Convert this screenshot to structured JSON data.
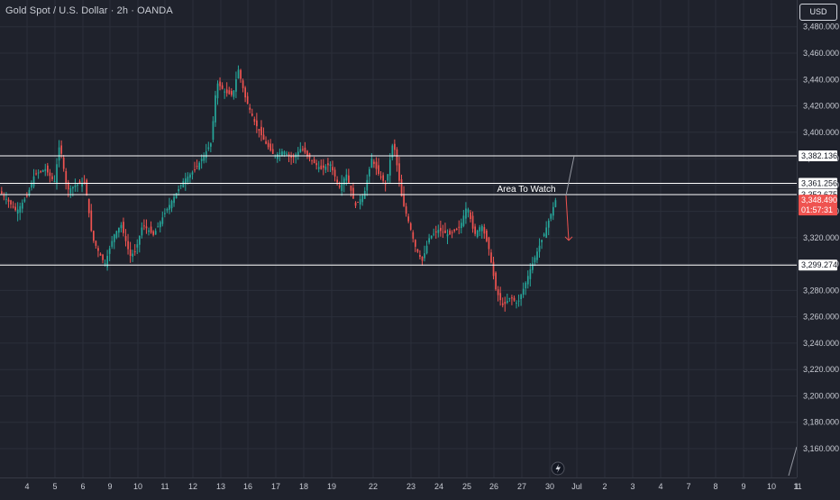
{
  "header": {
    "title": "Gold Spot / U.S. Dollar · 2h · OANDA",
    "currency": "USD"
  },
  "colors": {
    "up": "#26a69a",
    "down": "#ef5350",
    "grid": "#2b2f3a",
    "text": "#c9ccd4",
    "line": "#ffffff",
    "projection": "#9598a1",
    "arrow_down": "#ef5350"
  },
  "chart_data": {
    "type": "candlestick",
    "title": "Gold Spot / U.S. Dollar · 2h · OANDA",
    "y_ticks": [
      "3,160.000",
      "3,180.000",
      "3,200.000",
      "3,220.000",
      "3,240.000",
      "3,260.000",
      "3,280.000",
      "3,300.000",
      "3,320.000",
      "3,340.000",
      "3,360.000",
      "3,380.000",
      "3,400.000",
      "3,420.000",
      "3,440.000",
      "3,460.000",
      "3,480.000"
    ],
    "y_tick_values": [
      3160,
      3180,
      3200,
      3220,
      3240,
      3260,
      3280,
      3300,
      3320,
      3340,
      3360,
      3380,
      3400,
      3420,
      3440,
      3460,
      3480
    ],
    "x_ticks": [
      "4",
      "5",
      "6",
      "9",
      "10",
      "11",
      "12",
      "13",
      "16",
      "17",
      "18",
      "19",
      "22",
      "23",
      "24",
      "25",
      "26",
      "27",
      "30",
      "Jul",
      "2",
      "3",
      "4",
      "7",
      "8",
      "9",
      "10",
      "11",
      "1"
    ],
    "ylim": [
      3150,
      3495
    ],
    "grid": true,
    "horizontal_levels": [
      {
        "value": 3382.136,
        "label": "3,382.136"
      },
      {
        "value": 3361.256,
        "label": "3,361.256"
      },
      {
        "value": 3352.675,
        "label": "3,352.675"
      },
      {
        "value": 3299.274,
        "label": "3,299.274"
      }
    ],
    "zone_label": "Area To Watch",
    "current_price": {
      "value": 3348.49,
      "label": "3,348.490",
      "countdown": "01:57:31"
    },
    "projection": {
      "start": 3352,
      "target": 3382,
      "then": 3318
    }
  }
}
